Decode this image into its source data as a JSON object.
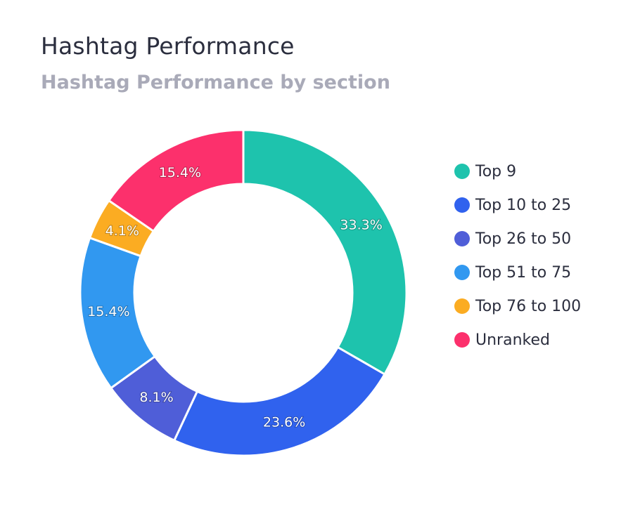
{
  "header": {
    "title": "Hashtag Performance",
    "subtitle": "Hashtag Performance by section"
  },
  "chart_data": {
    "type": "pie",
    "variant": "donut",
    "title": "Hashtag Performance",
    "subtitle": "Hashtag Performance by section",
    "categories": [
      "Top 9",
      "Top 10 to 25",
      "Top 26 to 50",
      "Top 51 to 75",
      "Top 76 to 100",
      "Unranked"
    ],
    "values": [
      33.3,
      23.6,
      8.1,
      15.4,
      4.1,
      15.4
    ],
    "value_labels": [
      "33.3%",
      "23.6%",
      "8.1%",
      "15.4%",
      "4.1%",
      "15.4%"
    ],
    "colors": [
      "#1ec3ad",
      "#3062ee",
      "#4f5ed8",
      "#3198f0",
      "#fbac22",
      "#fc306c"
    ],
    "legend_position": "right",
    "start_angle": "top, clockwise"
  }
}
